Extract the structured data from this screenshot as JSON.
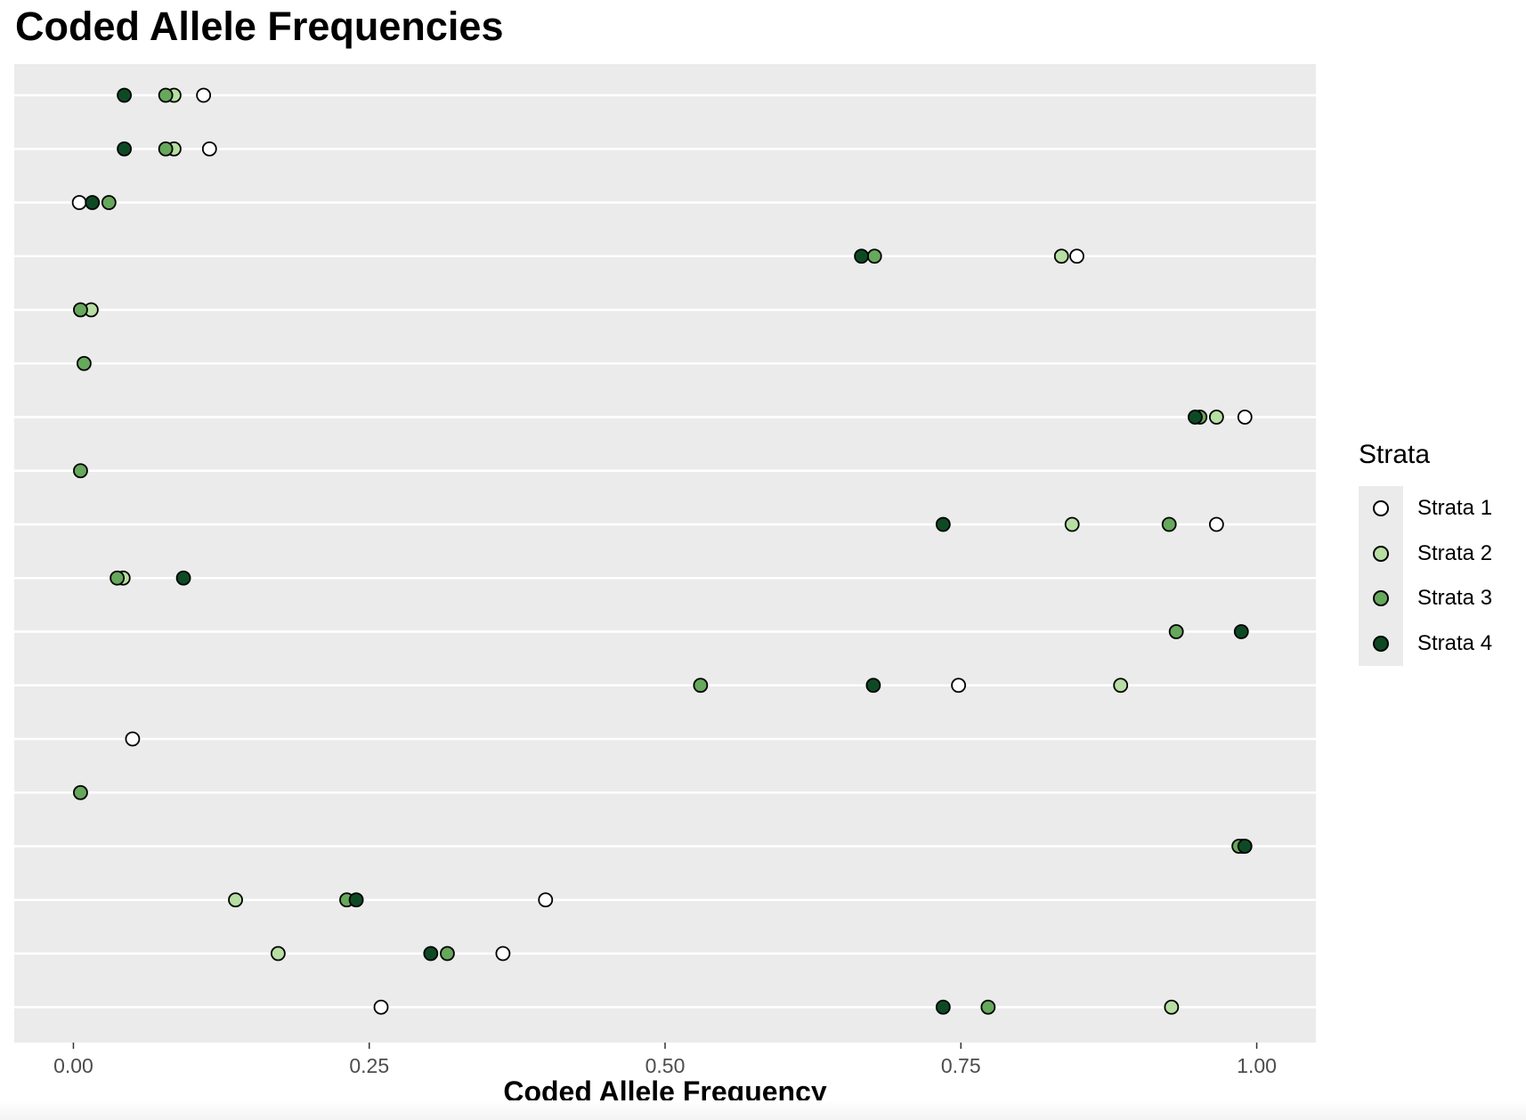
{
  "chart_data": {
    "type": "scatter",
    "title": "Coded Allele Frequencies",
    "xlabel": "Coded Allele Frequency",
    "ylabel": "",
    "xlim": [
      -0.05,
      1.05
    ],
    "xticks": [
      "0.00",
      "0.25",
      "0.50",
      "0.75",
      "1.00"
    ],
    "xtick_values": [
      0,
      0.25,
      0.5,
      0.75,
      1.0
    ],
    "n_rows": 18,
    "grid": true,
    "legend_title": "Strata",
    "legend_position": "right",
    "background": "#ebebeb",
    "series": [
      {
        "name": "Strata 1",
        "color": "#ffffff",
        "points": [
          [
            1,
            0.11
          ],
          [
            2,
            0.115
          ],
          [
            3,
            0.005
          ],
          [
            4,
            0.848
          ],
          [
            7,
            0.99
          ],
          [
            9,
            0.966
          ],
          [
            12,
            0.748
          ],
          [
            13,
            0.05
          ],
          [
            16,
            0.399
          ],
          [
            17,
            0.363
          ],
          [
            18,
            0.26
          ]
        ]
      },
      {
        "name": "Strata 2",
        "color": "#b7dea3",
        "points": [
          [
            1,
            0.085
          ],
          [
            2,
            0.085
          ],
          [
            4,
            0.835
          ],
          [
            5,
            0.015
          ],
          [
            7,
            0.966
          ],
          [
            9,
            0.844
          ],
          [
            10,
            0.042
          ],
          [
            12,
            0.885
          ],
          [
            15,
            0.988
          ],
          [
            16,
            0.137
          ],
          [
            17,
            0.173
          ],
          [
            18,
            0.928
          ]
        ]
      },
      {
        "name": "Strata 3",
        "color": "#66a85c",
        "points": [
          [
            1,
            0.078
          ],
          [
            2,
            0.078
          ],
          [
            3,
            0.03
          ],
          [
            4,
            0.677
          ],
          [
            5,
            0.006
          ],
          [
            6,
            0.009
          ],
          [
            7,
            0.952
          ],
          [
            8,
            0.006
          ],
          [
            9,
            0.926
          ],
          [
            10,
            0.037
          ],
          [
            11,
            0.932
          ],
          [
            12,
            0.53
          ],
          [
            14,
            0.006
          ],
          [
            15,
            0.985
          ],
          [
            16,
            0.231
          ],
          [
            17,
            0.316
          ],
          [
            18,
            0.773
          ]
        ]
      },
      {
        "name": "Strata 4",
        "color": "#0d4a24",
        "points": [
          [
            1,
            0.043
          ],
          [
            2,
            0.043
          ],
          [
            3,
            0.016
          ],
          [
            4,
            0.666
          ],
          [
            7,
            0.948
          ],
          [
            9,
            0.735
          ],
          [
            10,
            0.093
          ],
          [
            11,
            0.987
          ],
          [
            12,
            0.676
          ],
          [
            15,
            0.99
          ],
          [
            16,
            0.239
          ],
          [
            17,
            0.302
          ],
          [
            18,
            0.735
          ]
        ]
      }
    ]
  }
}
